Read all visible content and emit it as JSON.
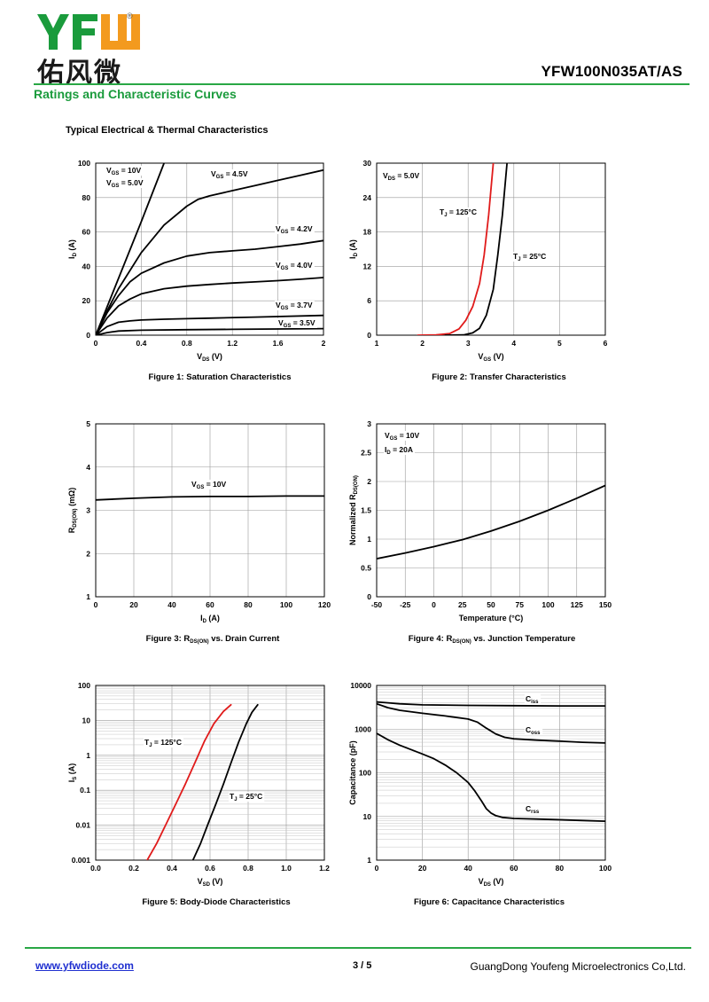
{
  "header": {
    "logo_letters": "YFW",
    "logo_cn": "佑风微",
    "registered_mark": "®",
    "model": "YFW100N035AT/AS",
    "section_title": "Ratings and Characteristic Curves",
    "sub_title": "Typical Electrical & Thermal Characteristics",
    "colors": {
      "brand_green": "#1a9b3c",
      "logo_orange": "#f39a1e",
      "rule_green": "#29a745"
    }
  },
  "footer": {
    "website": "www.yfwdiode.com",
    "page": "3 / 5",
    "company": "GuangDong Youfeng Microelectronics Co,Ltd."
  },
  "chart_data": [
    {
      "id": "fig1",
      "type": "line",
      "caption": "Figure 1:  Saturation Characteristics",
      "xlabel_main": "V",
      "xlabel_sub": "DS",
      "xlabel_unit": " (V)",
      "ylabel_main": "I",
      "ylabel_sub": "D",
      "ylabel_unit": " (A)",
      "xlim": [
        0,
        2
      ],
      "ylim": [
        0,
        100
      ],
      "grid": true,
      "xticks": [
        "0",
        "0.4",
        "0.8",
        "1.2",
        "1.6",
        "2"
      ],
      "yticks": [
        "0",
        "20",
        "40",
        "60",
        "80",
        "100"
      ],
      "series": [
        {
          "name": "VGS = 10V",
          "x": [
            0,
            0.2,
            0.4,
            0.6
          ],
          "y": [
            0,
            33,
            66,
            100
          ]
        },
        {
          "name": "VGS = 4.5V",
          "x": [
            0,
            0.1,
            0.2,
            0.4,
            0.6,
            0.8,
            0.9,
            1.0,
            1.2,
            1.4,
            1.6,
            1.8,
            2.0
          ],
          "y": [
            0,
            14,
            27,
            48,
            64,
            75,
            79,
            81,
            84,
            87,
            90,
            93,
            96
          ]
        },
        {
          "name": "VGS = 4.2V",
          "x": [
            0,
            0.1,
            0.2,
            0.3,
            0.4,
            0.6,
            0.8,
            1.0,
            1.2,
            1.4,
            1.6,
            1.8,
            2.0
          ],
          "y": [
            0,
            13,
            23,
            31,
            36,
            42,
            46,
            48,
            49,
            50,
            51.5,
            53,
            55
          ]
        },
        {
          "name": "VGS = 4.0V",
          "x": [
            0,
            0.1,
            0.2,
            0.3,
            0.4,
            0.6,
            0.8,
            1.0,
            1.2,
            1.4,
            1.6,
            1.8,
            2.0
          ],
          "y": [
            0,
            10,
            17,
            21,
            24,
            27,
            28.5,
            29.5,
            30.3,
            31,
            31.7,
            32.5,
            33.5
          ]
        },
        {
          "name": "VGS = 3.7V",
          "x": [
            0,
            0.1,
            0.2,
            0.3,
            0.4,
            0.6,
            0.8,
            1.0,
            1.4,
            2.0
          ],
          "y": [
            0,
            5,
            7.5,
            8.3,
            8.8,
            9.3,
            9.6,
            9.9,
            10.5,
            11.5
          ]
        },
        {
          "name": "VGS = 3.5V",
          "x": [
            0,
            0.1,
            0.2,
            0.4,
            0.8,
            1.2,
            2.0
          ],
          "y": [
            0,
            1.5,
            2.4,
            2.9,
            3.2,
            3.4,
            3.8
          ]
        }
      ],
      "annotations": [
        {
          "main": "V",
          "sub": "GS",
          "rest": " = 10V"
        },
        {
          "main": "V",
          "sub": "GS",
          "rest": " = 5.0V"
        },
        {
          "main": "V",
          "sub": "GS",
          "rest": " = 4.5V"
        },
        {
          "main": "V",
          "sub": "GS",
          "rest": " = 4.2V"
        },
        {
          "main": "V",
          "sub": "GS",
          "rest": " = 4.0V"
        },
        {
          "main": "V",
          "sub": "GS",
          "rest": " = 3.7V"
        },
        {
          "main": "V",
          "sub": "GS",
          "rest": " = 3.5V"
        }
      ]
    },
    {
      "id": "fig2",
      "type": "line",
      "caption": "Figure 2:  Transfer Characteristics",
      "xlabel_main": "V",
      "xlabel_sub": "GS",
      "xlabel_unit": " (V)",
      "ylabel_main": "I",
      "ylabel_sub": "D",
      "ylabel_unit": " (A)",
      "xlim": [
        1,
        6
      ],
      "ylim": [
        0,
        30
      ],
      "grid": true,
      "xticks": [
        "1",
        "2",
        "3",
        "4",
        "5",
        "6"
      ],
      "yticks": [
        "0",
        "6",
        "12",
        "18",
        "24",
        "30"
      ],
      "series": [
        {
          "name": "TJ = 125°C",
          "color": "#e01b1b",
          "x": [
            1.9,
            2.3,
            2.6,
            2.8,
            2.95,
            3.1,
            3.25,
            3.35,
            3.45,
            3.55
          ],
          "y": [
            0,
            0.05,
            0.3,
            1.1,
            2.6,
            5,
            9,
            14,
            21,
            30
          ]
        },
        {
          "name": "TJ = 25°C",
          "color": "#000000",
          "x": [
            2.5,
            2.9,
            3.1,
            3.25,
            3.4,
            3.55,
            3.65,
            3.75,
            3.85
          ],
          "y": [
            0,
            0.05,
            0.4,
            1.2,
            3.5,
            8,
            14,
            21,
            30
          ]
        }
      ],
      "annotations": [
        {
          "main": "V",
          "sub": "DS",
          "rest": " = 5.0V"
        },
        {
          "main": "T",
          "sub": "J",
          "rest": " = 125°C"
        },
        {
          "main": "T",
          "sub": "J",
          "rest": " = 25°C"
        }
      ]
    },
    {
      "id": "fig3",
      "type": "line",
      "caption_main": "Figure 3:  R",
      "caption_sub": "DS(ON)",
      "caption_rest": " vs. Drain Current",
      "xlabel_main": "I",
      "xlabel_sub": "D",
      "xlabel_unit": " (A)",
      "ylabel_main": "R",
      "ylabel_sub": "DS(ON)",
      "ylabel_unit": " (mΩ)",
      "xlim": [
        0,
        120
      ],
      "ylim": [
        1,
        5
      ],
      "grid": true,
      "xticks": [
        "0",
        "20",
        "40",
        "60",
        "80",
        "100",
        "120"
      ],
      "yticks": [
        "1",
        "2",
        "3",
        "4",
        "5"
      ],
      "series": [
        {
          "name": "VGS = 10V",
          "x": [
            0,
            20,
            40,
            60,
            80,
            100,
            120
          ],
          "y": [
            3.24,
            3.28,
            3.31,
            3.32,
            3.32,
            3.33,
            3.33
          ]
        }
      ],
      "annotations": [
        {
          "main": "V",
          "sub": "GS",
          "rest": " = 10V"
        }
      ]
    },
    {
      "id": "fig4",
      "type": "line",
      "caption_main": "Figure 4:  R",
      "caption_sub": "DS(ON)",
      "caption_rest": " vs. Junction Temperature",
      "xlabel": "Temperature (°C)",
      "ylabel_main": "Normalized R",
      "ylabel_sub": "DS(ON)",
      "ylabel_unit": "",
      "xlim": [
        -50,
        150
      ],
      "ylim": [
        0,
        3
      ],
      "grid": true,
      "xticks": [
        "-50",
        "-25",
        "0",
        "25",
        "50",
        "75",
        "100",
        "125",
        "150"
      ],
      "yticks": [
        "0",
        "0.5",
        "1",
        "1.5",
        "2",
        "2.5",
        "3"
      ],
      "series": [
        {
          "name": "VGS = 10V, ID = 20A",
          "x": [
            -50,
            -25,
            0,
            25,
            50,
            75,
            100,
            125,
            150
          ],
          "y": [
            0.66,
            0.76,
            0.87,
            0.99,
            1.14,
            1.31,
            1.5,
            1.71,
            1.93
          ]
        }
      ],
      "annotations": [
        {
          "main": "V",
          "sub": "GS",
          "rest": " = 10V"
        },
        {
          "main": "I",
          "sub": "D",
          "rest": " = 20A"
        }
      ]
    },
    {
      "id": "fig5",
      "type": "line",
      "caption": "Figure 5:  Body-Diode Characteristics",
      "xlabel_main": "V",
      "xlabel_sub": "SD",
      "xlabel_unit": " (V)",
      "ylabel_main": "I",
      "ylabel_sub": "S",
      "ylabel_unit": " (A)",
      "xlim": [
        0,
        1.2
      ],
      "ylim": [
        0.001,
        100
      ],
      "yscale": "log",
      "grid": true,
      "xticks": [
        "0.0",
        "0.2",
        "0.4",
        "0.6",
        "0.8",
        "1.0",
        "1.2"
      ],
      "yticks": [
        "0.001",
        "0.01",
        "0.1",
        "1",
        "10",
        "100"
      ],
      "series": [
        {
          "name": "TJ = 125°C",
          "color": "#e01b1b",
          "x": [
            0.27,
            0.32,
            0.37,
            0.42,
            0.47,
            0.52,
            0.57,
            0.62,
            0.67,
            0.71
          ],
          "y": [
            0.001,
            0.003,
            0.011,
            0.04,
            0.15,
            0.6,
            2.5,
            8,
            18,
            28
          ]
        },
        {
          "name": "TJ = 25°C",
          "color": "#000000",
          "x": [
            0.51,
            0.55,
            0.59,
            0.63,
            0.67,
            0.71,
            0.75,
            0.79,
            0.82,
            0.85
          ],
          "y": [
            0.001,
            0.003,
            0.011,
            0.04,
            0.15,
            0.6,
            2.4,
            8,
            17,
            28
          ]
        }
      ],
      "annotations": [
        {
          "main": "T",
          "sub": "J",
          "rest": " = 125°C"
        },
        {
          "main": "T",
          "sub": "J",
          "rest": " = 25°C"
        }
      ]
    },
    {
      "id": "fig6",
      "type": "line",
      "caption": "Figure 6:  Capacitance Characteristics",
      "xlabel_main": "V",
      "xlabel_sub": "DS",
      "xlabel_unit": " (V)",
      "ylabel": "Capacitance (pF)",
      "xlim": [
        0,
        100
      ],
      "ylim": [
        1,
        10000
      ],
      "yscale": "log",
      "grid": true,
      "xticks": [
        "0",
        "20",
        "40",
        "60",
        "80",
        "100"
      ],
      "yticks": [
        "1",
        "10",
        "100",
        "1000",
        "10000"
      ],
      "series": [
        {
          "name": "Ciss",
          "x": [
            0,
            5,
            10,
            20,
            40,
            60,
            80,
            100
          ],
          "y": [
            4200,
            4000,
            3800,
            3600,
            3500,
            3450,
            3400,
            3400
          ]
        },
        {
          "name": "Coss",
          "x": [
            0,
            5,
            10,
            20,
            30,
            40,
            44,
            48,
            52,
            56,
            60,
            70,
            80,
            90,
            100
          ],
          "y": [
            3800,
            3100,
            2700,
            2300,
            2000,
            1700,
            1450,
            1050,
            780,
            650,
            600,
            560,
            530,
            500,
            480
          ]
        },
        {
          "name": "Crss",
          "x": [
            0,
            5,
            10,
            15,
            20,
            25,
            30,
            35,
            40,
            43,
            46,
            48,
            50,
            52,
            55,
            60,
            70,
            80,
            90,
            100
          ],
          "y": [
            800,
            570,
            430,
            340,
            270,
            210,
            150,
            100,
            60,
            38,
            22,
            15,
            12,
            10.5,
            9.5,
            9,
            8.7,
            8.4,
            8.1,
            7.8
          ]
        }
      ],
      "annotations": [
        {
          "main": "C",
          "sub": "iss",
          "rest": ""
        },
        {
          "main": "C",
          "sub": "oss",
          "rest": ""
        },
        {
          "main": "C",
          "sub": "rss",
          "rest": ""
        }
      ]
    }
  ]
}
